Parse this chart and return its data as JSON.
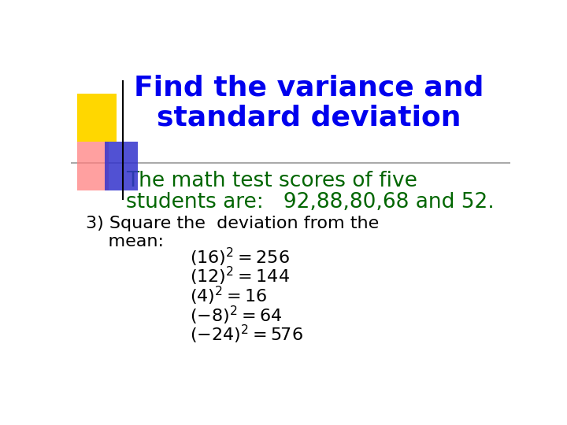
{
  "title_line1": "Find the variance and",
  "title_line2": "standard deviation",
  "title_color": "#0000EE",
  "subtitle_line1": "The math test scores of five",
  "subtitle_line2": "students are:   92,88,80,68 and 52.",
  "subtitle_color": "#006600",
  "step_line1": "3) Square the  deviation from the",
  "step_line2": "    mean:",
  "step_color": "#000000",
  "equations": [
    {
      "math": "(16)^{2} = 256"
    },
    {
      "math": "(12)^{2} =144"
    },
    {
      "math": "(4)^{2} = 16"
    },
    {
      "math": "(-8)^{2} = 64"
    },
    {
      "math": "(-24)^{2} = 576"
    }
  ],
  "eq_color": "#000000",
  "background_color": "#ffffff",
  "separator_color": "#999999"
}
